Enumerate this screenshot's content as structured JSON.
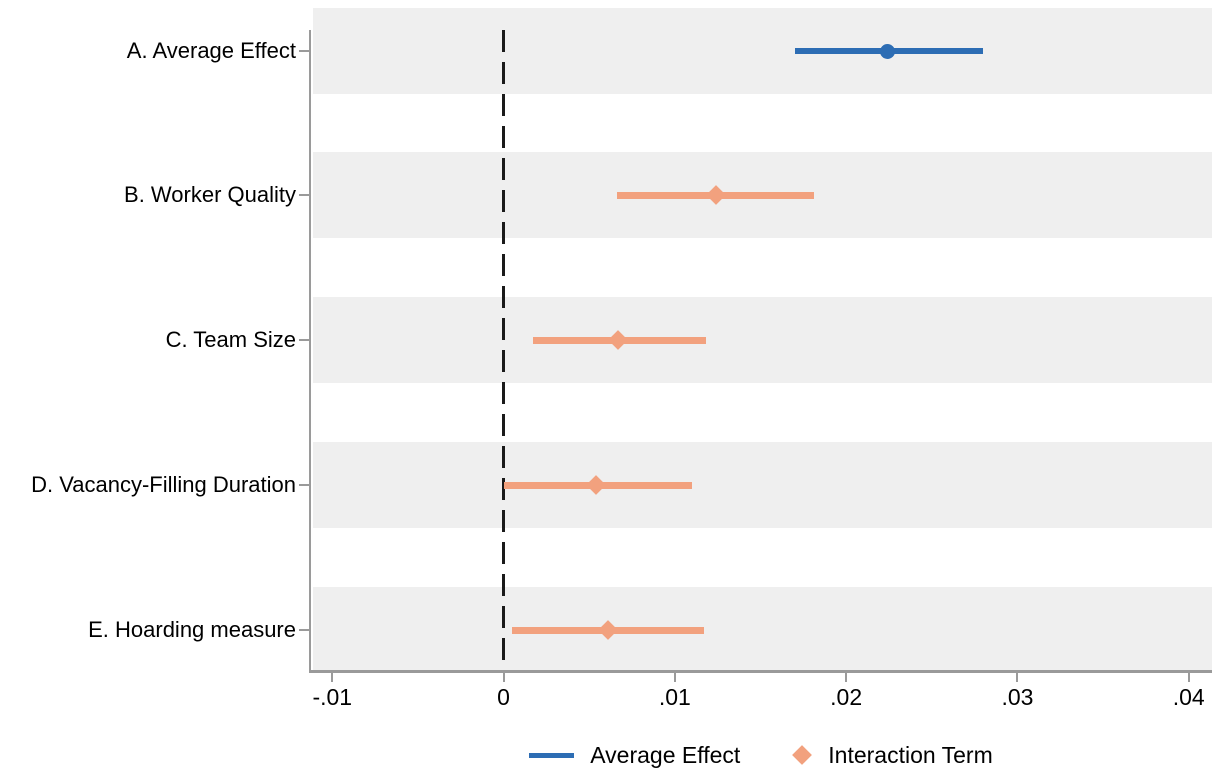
{
  "chart_data": {
    "type": "scatter",
    "subtype": "coefficient-plot",
    "title": "",
    "xlabel": "",
    "ylabel": "",
    "xlim": [
      -0.0113,
      0.0413
    ],
    "grid": false,
    "legend_position": "bottom-center",
    "zero_reference_line": 0,
    "x_ticks": [
      {
        "value": -0.01,
        "label": "-.01"
      },
      {
        "value": 0,
        "label": "0"
      },
      {
        "value": 0.01,
        "label": ".01"
      },
      {
        "value": 0.02,
        "label": ".02"
      },
      {
        "value": 0.03,
        "label": ".03"
      },
      {
        "value": 0.04,
        "label": ".04"
      }
    ],
    "series": [
      {
        "name": "Average Effect",
        "marker": "circle",
        "color": "#2d6db4"
      },
      {
        "name": "Interaction Term",
        "marker": "diamond",
        "color": "#f2a17e"
      }
    ],
    "rows": [
      {
        "label": "A. Average Effect",
        "series": "Average Effect",
        "estimate": 0.0224,
        "ci_low": 0.017,
        "ci_high": 0.028
      },
      {
        "label": "B. Worker Quality",
        "series": "Interaction Term",
        "estimate": 0.0124,
        "ci_low": 0.0066,
        "ci_high": 0.0181
      },
      {
        "label": "C. Team Size",
        "series": "Interaction Term",
        "estimate": 0.0067,
        "ci_low": 0.0017,
        "ci_high": 0.0118
      },
      {
        "label": "D. Vacancy-Filling Duration",
        "series": "Interaction Term",
        "estimate": 0.0054,
        "ci_low": 0.0,
        "ci_high": 0.011
      },
      {
        "label": "E. Hoarding measure",
        "series": "Interaction Term",
        "estimate": 0.0061,
        "ci_low": 0.0005,
        "ci_high": 0.0117
      }
    ],
    "styles": {
      "band_color": "#efefef",
      "background": "#ffffff",
      "axis_color": "#9a9a9a",
      "zero_line_color": "#1a1a1a",
      "text_color": "#000000"
    }
  }
}
